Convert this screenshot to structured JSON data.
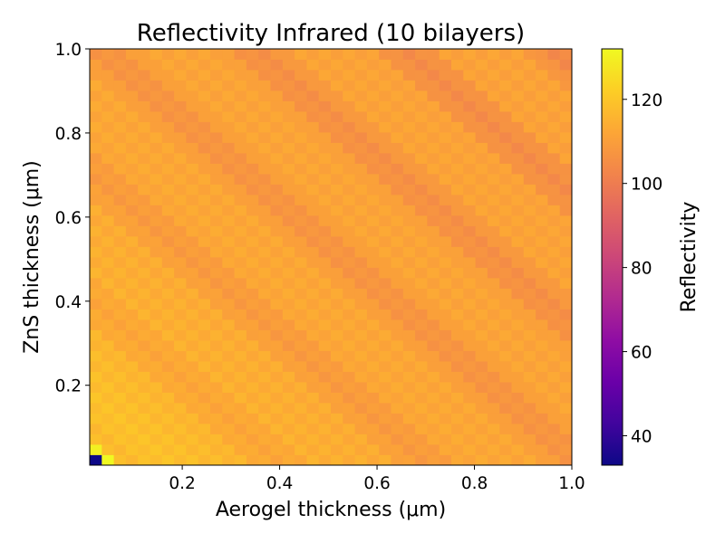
{
  "chart_data": {
    "type": "heatmap",
    "title": "Reflectivity Infrared (10 bilayers)",
    "xlabel": "Aerogel thickness (μm)",
    "ylabel": "ZnS thickness (μm)",
    "xlim": [
      0.01,
      1.0
    ],
    "ylim": [
      0.01,
      1.0
    ],
    "grid_size": 40,
    "x_ticks": [
      0.2,
      0.4,
      0.6,
      0.8,
      1.0
    ],
    "x_tick_labels": [
      "0.2",
      "0.4",
      "0.6",
      "0.8",
      "1.0"
    ],
    "y_ticks": [
      0.2,
      0.4,
      0.6,
      0.8,
      1.0
    ],
    "y_tick_labels": [
      "0.2",
      "0.4",
      "0.6",
      "0.8",
      "1.0"
    ],
    "colorbar": {
      "label": "Reflectivity",
      "colormap": "plasma",
      "range": [
        33,
        132
      ],
      "ticks": [
        40,
        60,
        80,
        100,
        120
      ],
      "tick_labels": [
        "40",
        "60",
        "80",
        "100",
        "120"
      ]
    },
    "values_description_free": true,
    "model": {
      "base": 111,
      "low_thickness_boost": 12,
      "ripple_amplitude": 5,
      "ripple_frequency": 20,
      "anomalies": [
        {
          "x_index": 0,
          "y_index": 0,
          "value": 33
        },
        {
          "x_index": 1,
          "y_index": 0,
          "value": 132
        },
        {
          "x_index": 0,
          "y_index": 1,
          "value": 130
        }
      ]
    }
  }
}
